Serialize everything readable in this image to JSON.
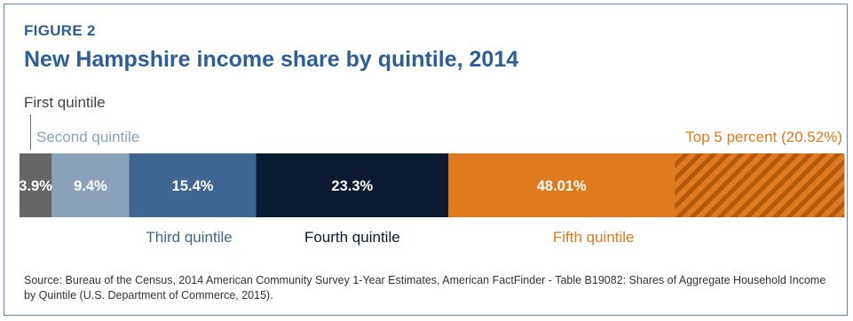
{
  "figure_label": "FIGURE 2",
  "chart_data": {
    "type": "bar",
    "orientation": "horizontal-stacked",
    "title": "New Hampshire income share by quintile, 2014",
    "xlim": [
      0,
      100
    ],
    "grid": false,
    "segments": [
      {
        "name": "First quintile",
        "value": 3.9,
        "label": "3.9%",
        "color": "#666666",
        "text_color": "#ffffff",
        "pattern": "solid"
      },
      {
        "name": "Second quintile",
        "value": 9.4,
        "label": "9.4%",
        "color": "#8ba2bc",
        "text_color": "#ffffff",
        "pattern": "solid"
      },
      {
        "name": "Third quintile",
        "value": 15.4,
        "label": "15.4%",
        "color": "#3f6690",
        "text_color": "#ffffff",
        "pattern": "solid"
      },
      {
        "name": "Fourth quintile",
        "value": 23.3,
        "label": "23.3%",
        "color": "#0b1a33",
        "text_color": "#ffffff",
        "pattern": "solid"
      },
      {
        "name": "Fifth quintile",
        "value": 48.01,
        "label": "48.01%",
        "color": "#e07a1d",
        "text_color": "#ffffff",
        "pattern": "solid"
      }
    ],
    "overlay": {
      "name": "Top 5 percent (20.52%)",
      "value": 20.52,
      "within": "Fifth quintile",
      "position": "end",
      "pattern": "hatched",
      "color": "#e07a1d",
      "stripe_color": "#b35a0c"
    },
    "label_colors": {
      "First quintile": "#444444",
      "Second quintile": "#8ba2bc",
      "Third quintile": "#3f6690",
      "Fourth quintile": "#0b1a33",
      "Fifth quintile": "#e07a1d",
      "Top 5 percent (20.52%)": "#e07a1d"
    }
  },
  "source": "Source: Bureau of the Census, 2014 American Community Survey 1-Year Estimates, American FactFinder - Table B19082: Shares of Aggregate Household Income by Quintile (U.S. Department of Commerce, 2015)."
}
